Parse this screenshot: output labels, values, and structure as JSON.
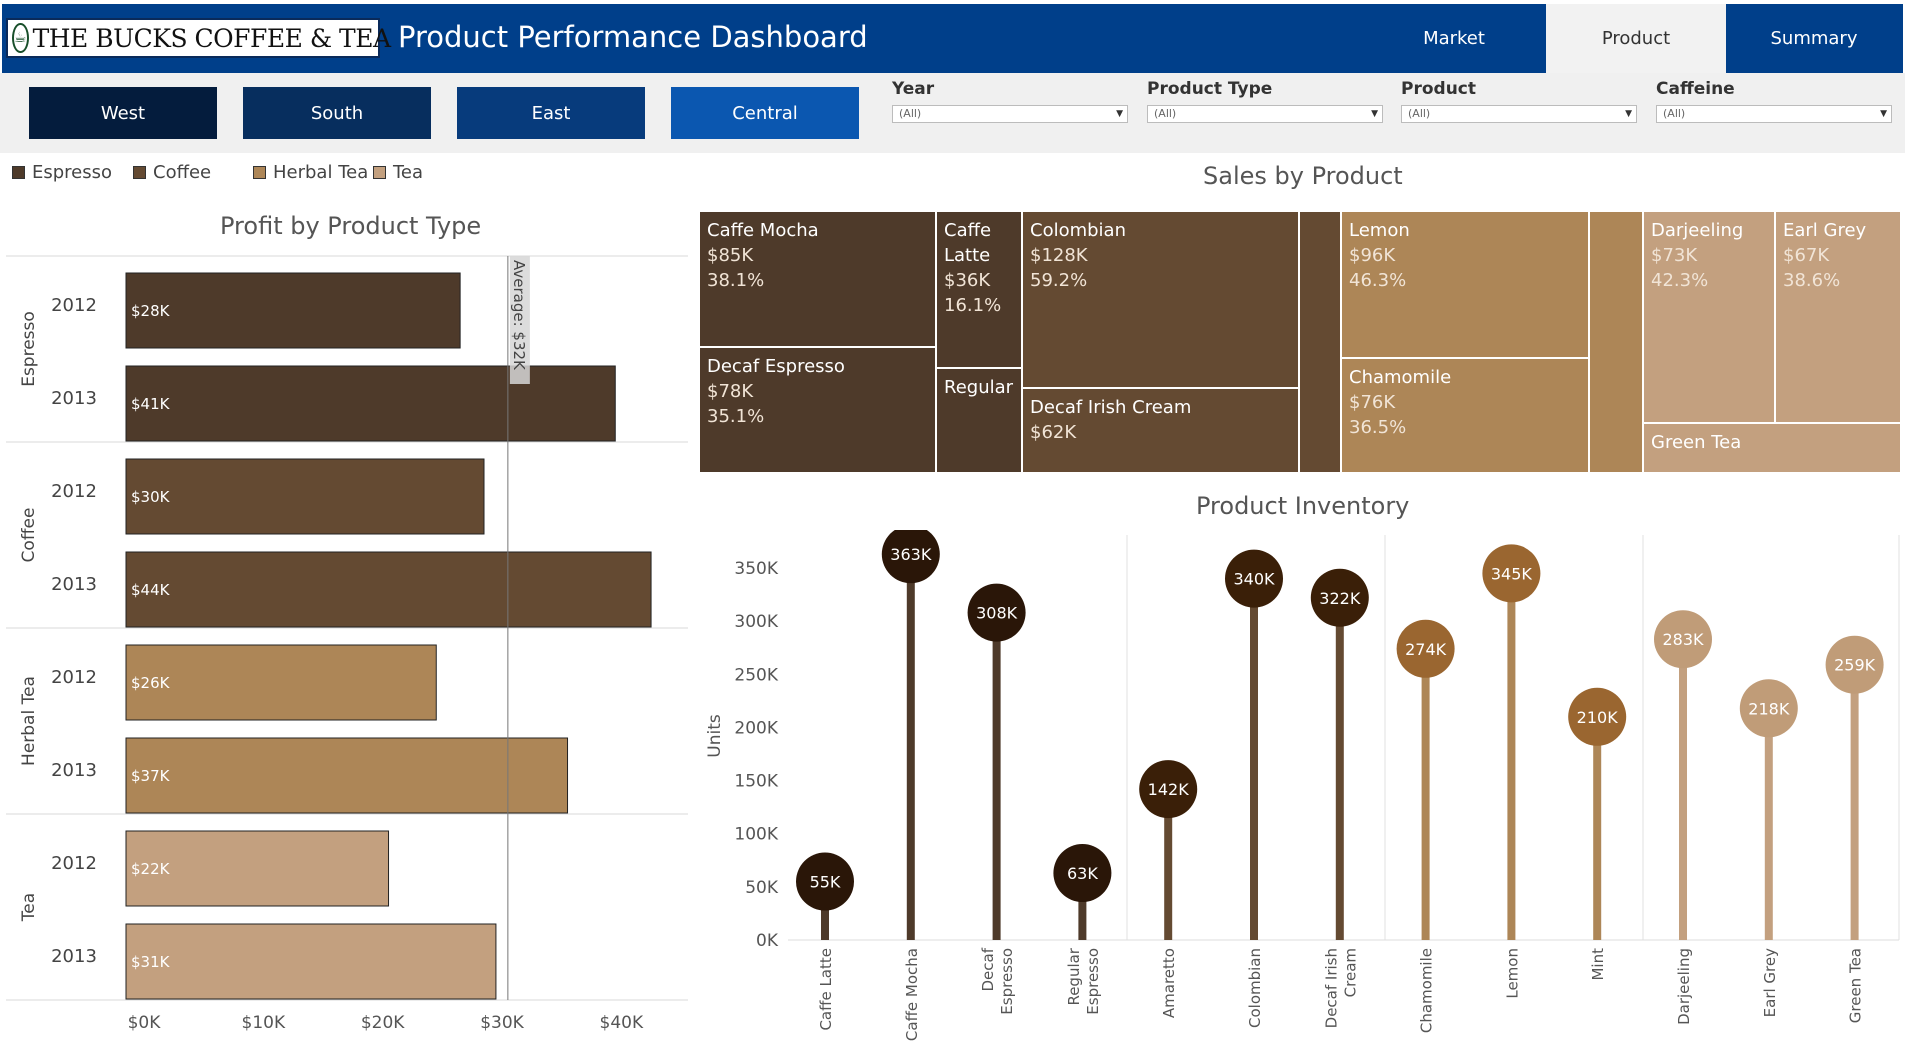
{
  "header": {
    "logo_text": "THE BUCKS COFFEE & TEA",
    "title": "Product Performance Dashboard",
    "tabs": [
      {
        "label": "Market",
        "active": false
      },
      {
        "label": "Product",
        "active": true
      },
      {
        "label": "Summary",
        "active": false
      }
    ]
  },
  "regions": [
    {
      "label": "West",
      "color": "#041c3d"
    },
    {
      "label": "South",
      "color": "#072e5e"
    },
    {
      "label": "East",
      "color": "#073b7c"
    },
    {
      "label": "Central",
      "color": "#0b57b0"
    }
  ],
  "filters": [
    {
      "label": "Year",
      "value": "(All)"
    },
    {
      "label": "Product Type",
      "value": "(All)"
    },
    {
      "label": "Product",
      "value": "(All)"
    },
    {
      "label": "Caffeine",
      "value": "(All)"
    }
  ],
  "legend": [
    {
      "label": "Espresso",
      "color": "#4e3a2a"
    },
    {
      "label": "Coffee",
      "color": "#644a32"
    },
    {
      "label": "Herbal Tea",
      "color": "#ad8657"
    },
    {
      "label": "Tea",
      "color": "#c3a07f"
    }
  ],
  "colors": {
    "espresso": "#4e3a2a",
    "coffee": "#644a32",
    "herbal_tea": "#ad8657",
    "tea": "#c3a07f",
    "dot_espresso": "#2a1608",
    "dot_coffee": "#3a1f08",
    "dot_herbal": "#9a6630",
    "dot_tea": "#c09c78",
    "stem_espresso": "#4e3a2a",
    "stem_coffee": "#644a32",
    "stem_herbal": "#ad8657",
    "stem_tea": "#c3a07f"
  },
  "profit_chart": {
    "title": "Profit by Product Type",
    "reference_line": {
      "label": "Average: $32K",
      "value": 32
    }
  },
  "sales_chart": {
    "title": "Sales by Product",
    "labels": {
      "regular": "Regular",
      "green_tea": "Green Tea"
    }
  },
  "inventory_chart": {
    "title": "Product Inventory",
    "ylabel": "Units"
  },
  "chart_data": [
    {
      "type": "bar",
      "title": "Profit by Product Type",
      "orientation": "horizontal",
      "groups": [
        {
          "name": "Espresso",
          "rows": [
            {
              "year": "2012",
              "value": 28,
              "label": "$28K"
            },
            {
              "year": "2013",
              "value": 41,
              "label": "$41K"
            }
          ]
        },
        {
          "name": "Coffee",
          "rows": [
            {
              "year": "2012",
              "value": 30,
              "label": "$30K"
            },
            {
              "year": "2013",
              "value": 44,
              "label": "$44K"
            }
          ]
        },
        {
          "name": "Herbal Tea",
          "rows": [
            {
              "year": "2012",
              "value": 26,
              "label": "$26K"
            },
            {
              "year": "2013",
              "value": 37,
              "label": "$37K"
            }
          ]
        },
        {
          "name": "Tea",
          "rows": [
            {
              "year": "2012",
              "value": 22,
              "label": "$22K"
            },
            {
              "year": "2013",
              "value": 31,
              "label": "$31K"
            }
          ]
        }
      ],
      "xlim": [
        0,
        45
      ],
      "xticks": [
        0,
        10,
        20,
        30,
        40
      ],
      "xtick_labels": [
        "$0K",
        "$10K",
        "$20K",
        "$30K",
        "$40K"
      ],
      "reference_line": {
        "value": 32,
        "label": "Average: $32K"
      }
    },
    {
      "type": "treemap",
      "title": "Sales by Product",
      "groups": [
        {
          "name": "Espresso",
          "items": [
            {
              "name": "Caffe Mocha",
              "value_label": "$85K",
              "share": "38.1%"
            },
            {
              "name": "Decaf Espresso",
              "value_label": "$78K",
              "share": "35.1%"
            },
            {
              "name": "Caffe Latte",
              "value_label": "$36K",
              "share": "16.1%"
            },
            {
              "name": "Regular",
              "value_label": "",
              "share": ""
            }
          ]
        },
        {
          "name": "Coffee",
          "items": [
            {
              "name": "Colombian",
              "value_label": "$128K",
              "share": "59.2%"
            },
            {
              "name": "Decaf Irish Cream",
              "value_label": "$62K",
              "share": ""
            }
          ]
        },
        {
          "name": "Herbal Tea",
          "items": [
            {
              "name": "Lemon",
              "value_label": "$96K",
              "share": "46.3%"
            },
            {
              "name": "Chamomile",
              "value_label": "$76K",
              "share": "36.5%"
            }
          ]
        },
        {
          "name": "Tea",
          "items": [
            {
              "name": "Darjeeling",
              "value_label": "$73K",
              "share": "42.3%"
            },
            {
              "name": "Earl Grey",
              "value_label": "$67K",
              "share": "38.6%"
            },
            {
              "name": "Green Tea",
              "value_label": "",
              "share": ""
            }
          ]
        }
      ]
    },
    {
      "type": "lollipop",
      "title": "Product Inventory",
      "ylabel": "Units",
      "ylim": [
        0,
        370000
      ],
      "yticks": [
        0,
        50000,
        100000,
        150000,
        200000,
        250000,
        300000,
        350000
      ],
      "ytick_labels": [
        "0K",
        "50K",
        "100K",
        "150K",
        "200K",
        "250K",
        "300K",
        "350K"
      ],
      "points": [
        {
          "product": "Caffe Latte",
          "group": "Espresso",
          "value": 55000,
          "label": "55K"
        },
        {
          "product": "Caffe Mocha",
          "group": "Espresso",
          "value": 363000,
          "label": "363K"
        },
        {
          "product": "Decaf Espresso",
          "group": "Espresso",
          "value": 308000,
          "label": "308K"
        },
        {
          "product": "Regular Espresso",
          "group": "Espresso",
          "value": 63000,
          "label": "63K"
        },
        {
          "product": "Amaretto",
          "group": "Coffee",
          "value": 142000,
          "label": "142K"
        },
        {
          "product": "Colombian",
          "group": "Coffee",
          "value": 340000,
          "label": "340K"
        },
        {
          "product": "Decaf Irish Cream",
          "group": "Coffee",
          "value": 322000,
          "label": "322K"
        },
        {
          "product": "Chamomile",
          "group": "Herbal Tea",
          "value": 274000,
          "label": "274K"
        },
        {
          "product": "Lemon",
          "group": "Herbal Tea",
          "value": 345000,
          "label": "345K"
        },
        {
          "product": "Mint",
          "group": "Herbal Tea",
          "value": 210000,
          "label": "210K"
        },
        {
          "product": "Darjeeling",
          "group": "Tea",
          "value": 283000,
          "label": "283K"
        },
        {
          "product": "Earl Grey",
          "group": "Tea",
          "value": 218000,
          "label": "218K"
        },
        {
          "product": "Green Tea",
          "group": "Tea",
          "value": 259000,
          "label": "259K"
        }
      ]
    }
  ]
}
